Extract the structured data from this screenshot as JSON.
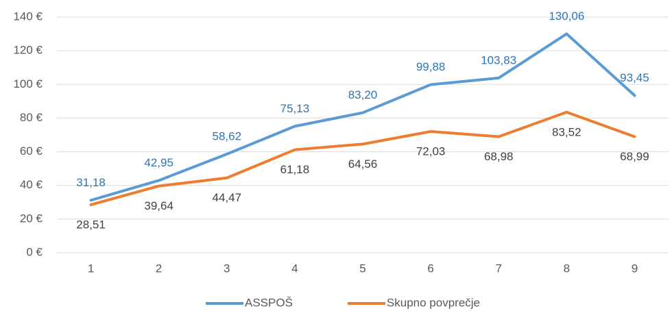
{
  "chart_data": {
    "type": "line",
    "categories": [
      "1",
      "2",
      "3",
      "4",
      "5",
      "6",
      "7",
      "8",
      "9"
    ],
    "series": [
      {
        "name": "ASSPOŠ",
        "color": "#5b9bd5",
        "label_color": "#2e75b6",
        "label_position": "above",
        "values": [
          31.18,
          42.95,
          58.62,
          75.13,
          83.2,
          99.88,
          103.83,
          130.06,
          93.45
        ],
        "value_labels": [
          "31,18",
          "42,95",
          "58,62",
          "75,13",
          "83,20",
          "99,88",
          "103,83",
          "130,06",
          "93,45"
        ]
      },
      {
        "name": "Skupno povprečje",
        "color": "#ed7d31",
        "label_color": "#404040",
        "label_position": "below",
        "values": [
          28.51,
          39.64,
          44.47,
          61.18,
          64.56,
          72.03,
          68.98,
          83.52,
          68.99
        ],
        "value_labels": [
          "28,51",
          "39,64",
          "44,47",
          "61,18",
          "64,56",
          "72,03",
          "68,98",
          "83,52",
          "68,99"
        ]
      }
    ],
    "ylim": [
      0,
      140
    ],
    "yticks": [
      {
        "value": 0,
        "label": "0 €"
      },
      {
        "value": 20,
        "label": "20 €"
      },
      {
        "value": 40,
        "label": "40 €"
      },
      {
        "value": 60,
        "label": "60 €"
      },
      {
        "value": 80,
        "label": "80 €"
      },
      {
        "value": 100,
        "label": "100 €"
      },
      {
        "value": 120,
        "label": "120 €"
      },
      {
        "value": 140,
        "label": "140 €"
      }
    ],
    "grid": true,
    "legend": "bottom"
  }
}
